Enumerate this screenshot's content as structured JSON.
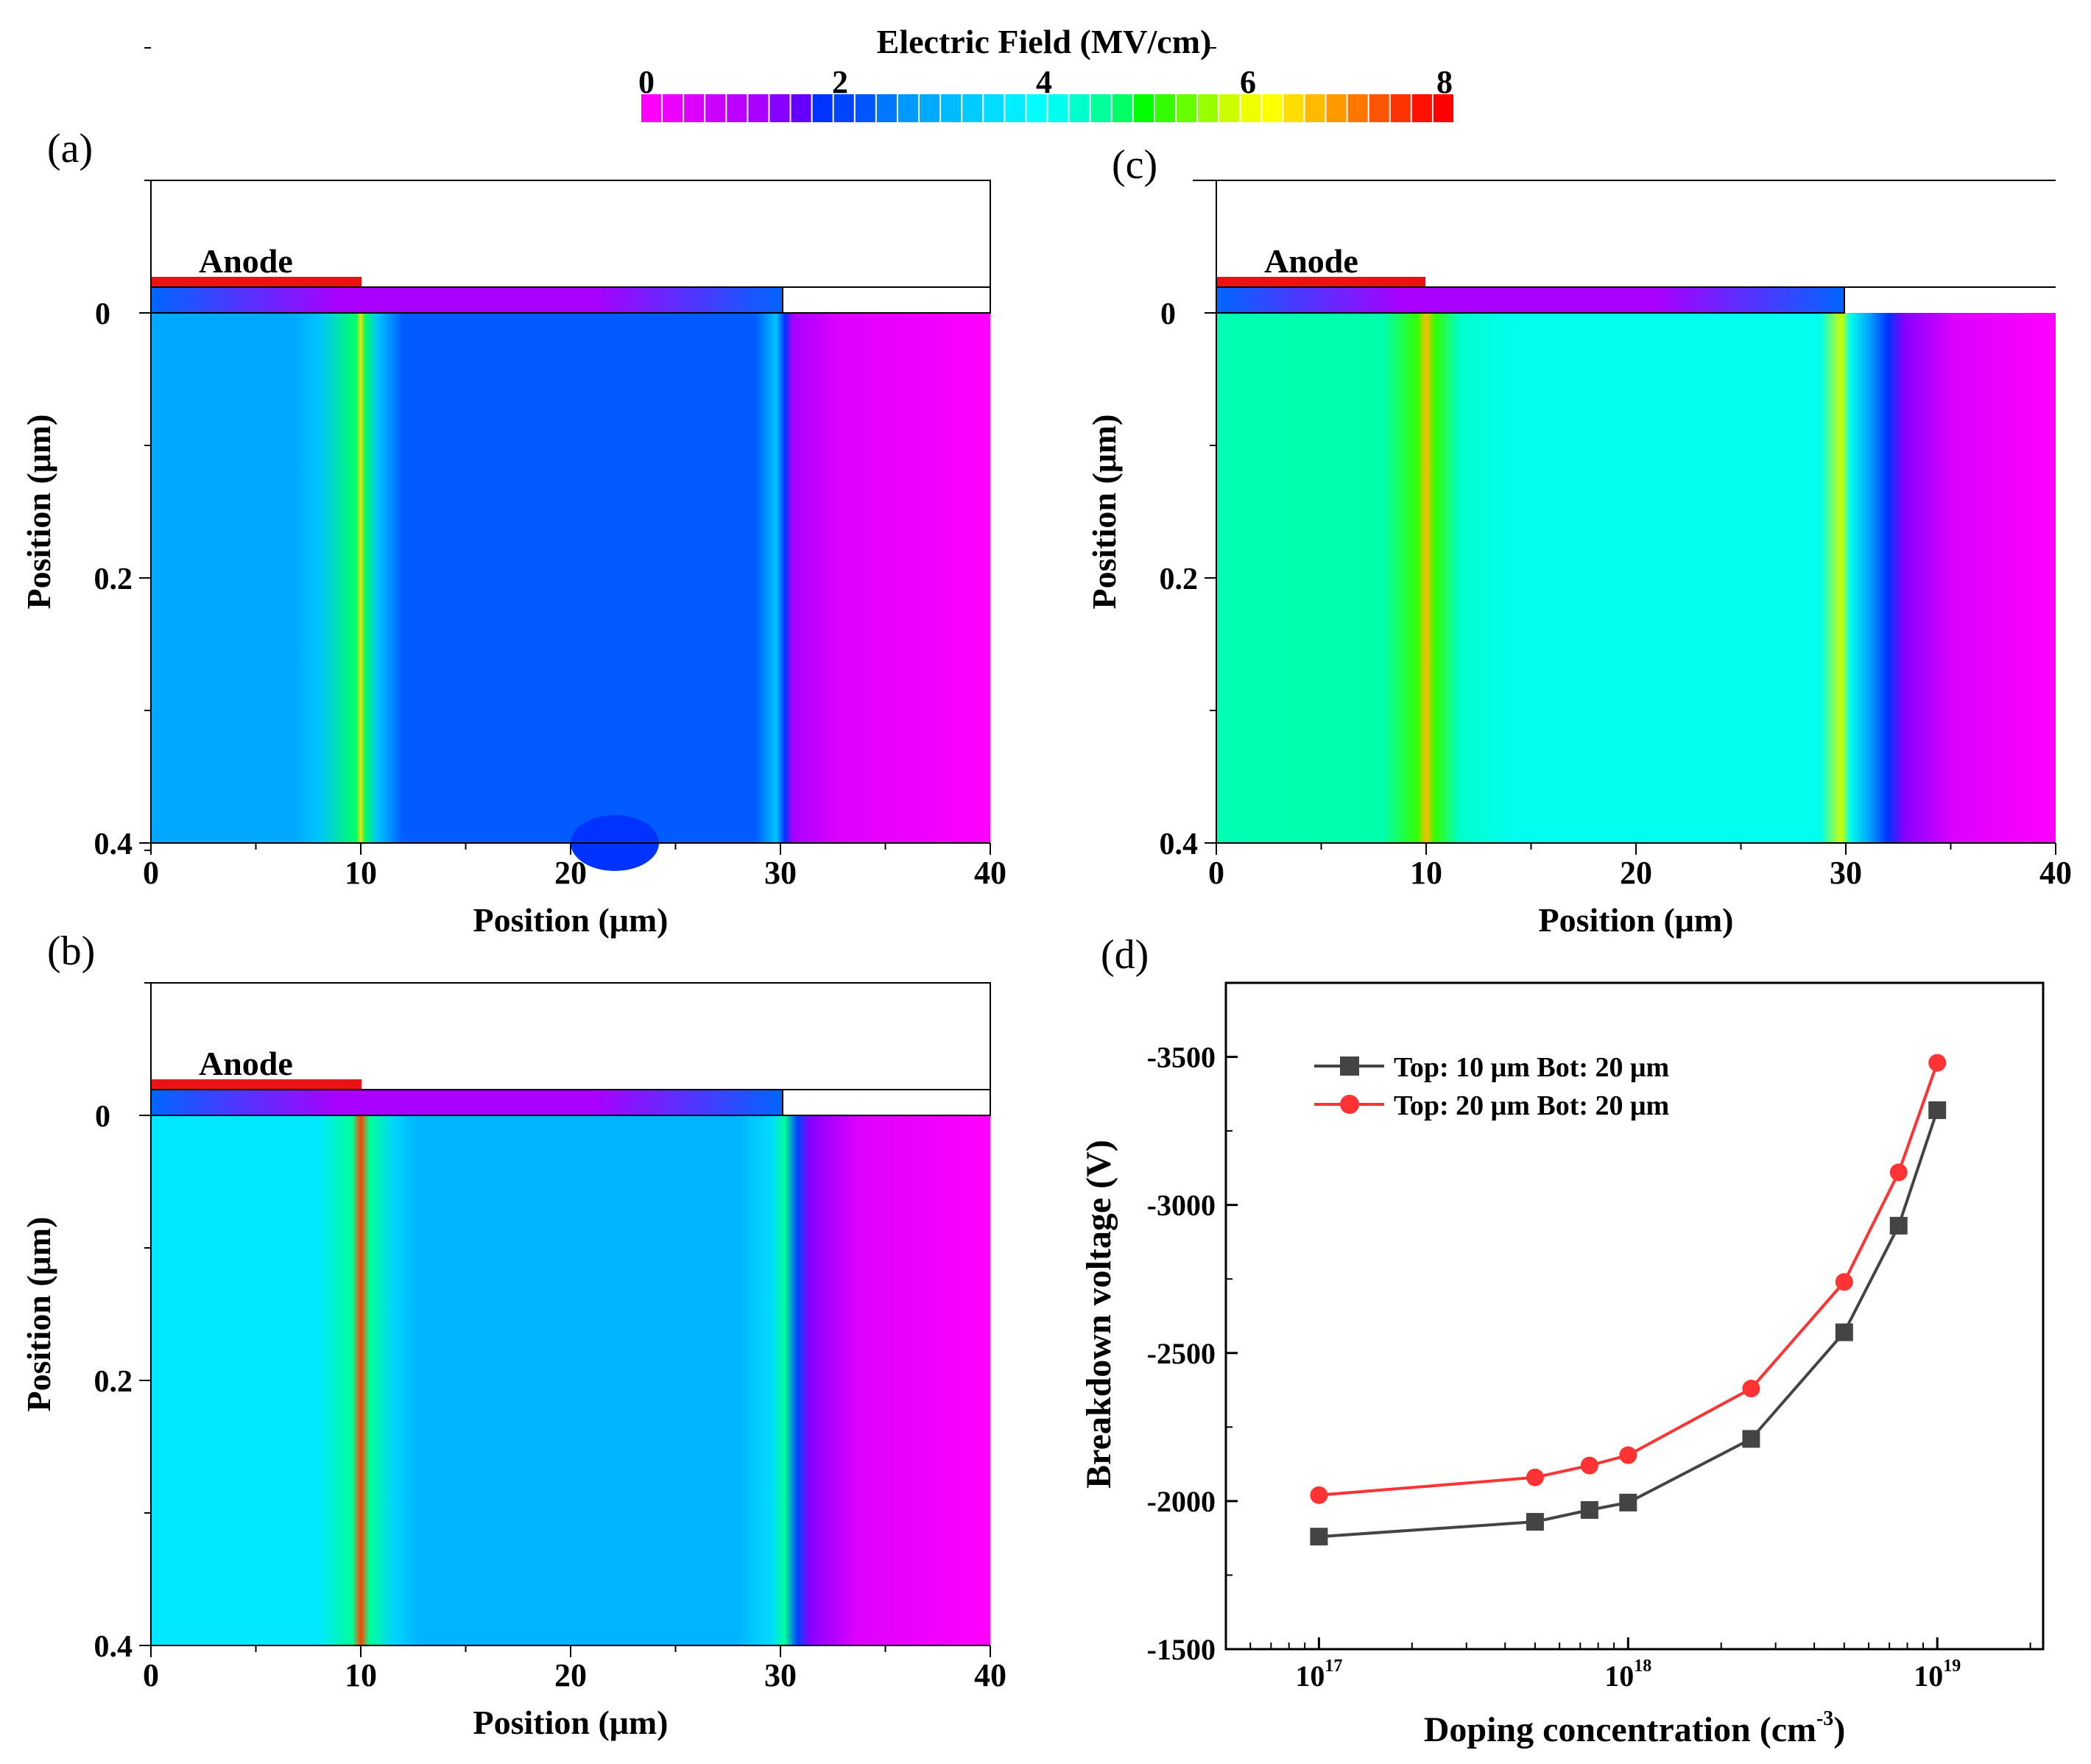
{
  "colorbar": {
    "title": "Electric Field (MV/cm)",
    "ticks": [
      "0",
      "2",
      "4",
      "6",
      "8"
    ],
    "colors": [
      "#ff00ff",
      "#ee00ff",
      "#dd00ff",
      "#cc00ff",
      "#bb00ff",
      "#aa00ff",
      "#8800ff",
      "#6600ff",
      "#0033ff",
      "#0044ff",
      "#0055ff",
      "#0077ff",
      "#0099ff",
      "#00aaff",
      "#00bbff",
      "#00ccff",
      "#00ddff",
      "#00eeff",
      "#00ffff",
      "#00ffee",
      "#00ffcc",
      "#00ff99",
      "#00ff66",
      "#00ff00",
      "#33ff00",
      "#66ff00",
      "#99ff00",
      "#ccff00",
      "#eeff00",
      "#ffff00",
      "#ffdd00",
      "#ffbb00",
      "#ff9900",
      "#ff7700",
      "#ff5500",
      "#ff3300",
      "#ff1100",
      "#ff0000"
    ]
  },
  "panels": {
    "a": {
      "label": "(a)",
      "anode": "Anode",
      "xlabel": "Position (μm)",
      "ylabel": "Position (μm)",
      "xticks": [
        "0",
        "10",
        "20",
        "30",
        "40"
      ],
      "yticks": [
        "0",
        "0.2",
        "0.4"
      ],
      "field_bg": "#00a8ff",
      "field_core": "#005cff",
      "field_edge": "#ff00ff",
      "drift_end_um": 30
    },
    "b": {
      "label": "(b)",
      "anode": "Anode",
      "xlabel": "Position (μm)",
      "ylabel": "Position (μm)",
      "xticks": [
        "0",
        "10",
        "20",
        "30",
        "40"
      ],
      "yticks": [
        "0",
        "0.2",
        "0.4"
      ],
      "field_bg": "#00e8ff",
      "field_core": "#00b4ff",
      "field_edge": "#ff00ff",
      "drift_end_um": 31
    },
    "c": {
      "label": "(c)",
      "anode": "Anode",
      "xlabel": "Position (μm)",
      "ylabel": "Position (μm)",
      "xticks": [
        "0",
        "10",
        "20",
        "30",
        "40"
      ],
      "yticks": [
        "0",
        "0.2",
        "0.4"
      ],
      "field_bg": "#00ffb4",
      "field_core": "#00ffee",
      "field_edge": "#ff00ff",
      "drift_end_um": 32
    }
  },
  "chart_data": {
    "type": "line",
    "label": "(d)",
    "title": "",
    "xlabel": "Doping concentration (cm",
    "xlabel_sup": "-3",
    "xlabel_end": ")",
    "ylabel": "Breakdown voltage (V)",
    "x_scale": "log",
    "xlim": [
      5e+16,
      2.2e+19
    ],
    "ylim": [
      -1500,
      -3750
    ],
    "x_ticks": [
      1e+17,
      1e+18,
      1e+19
    ],
    "x_tick_labels": [
      {
        "base": "10",
        "exp": "17"
      },
      {
        "base": "10",
        "exp": "18"
      },
      {
        "base": "10",
        "exp": "19"
      }
    ],
    "y_ticks": [
      -1500,
      -2000,
      -2500,
      -3000,
      -3500
    ],
    "y_tick_labels": [
      "-1500",
      "-2000",
      "-2500",
      "-3000",
      "-3500"
    ],
    "legend_position": "top-left",
    "series": [
      {
        "name": "Top: 10 μm Bot: 20 μm",
        "color": "#444444",
        "marker": "square",
        "x": [
          1e+17,
          5e+17,
          7.5e+17,
          1e+18,
          2.5e+18,
          5e+18,
          7.5e+18,
          1e+19
        ],
        "y": [
          -1880,
          -1930,
          -1970,
          -1995,
          -2210,
          -2570,
          -2930,
          -3320
        ]
      },
      {
        "name": "Top: 20 μm Bot: 20 μm",
        "color": "#ff3333",
        "marker": "circle",
        "x": [
          1e+17,
          5e+17,
          7.5e+17,
          1e+18,
          2.5e+18,
          5e+18,
          7.5e+18,
          1e+19
        ],
        "y": [
          -2020,
          -2080,
          -2120,
          -2155,
          -2380,
          -2740,
          -3110,
          -3480
        ]
      }
    ]
  }
}
